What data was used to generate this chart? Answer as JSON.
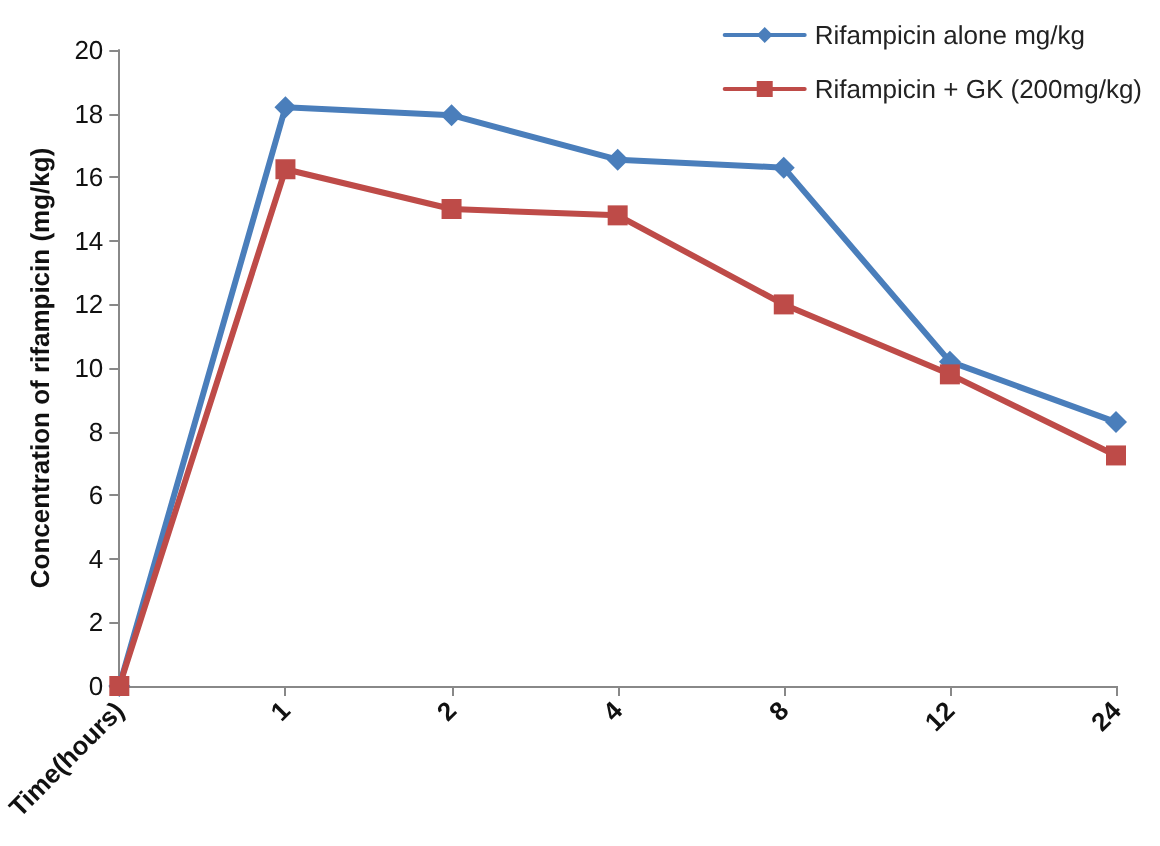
{
  "chart_data": {
    "type": "line",
    "ylabel": "Concentration of rifampicin (mg/kg)",
    "categories": [
      "Time(hours)",
      "1",
      "2",
      "4",
      "8",
      "12",
      "24"
    ],
    "series": [
      {
        "name": "Rifampicin alone mg/kg",
        "color": "#4a7ebb",
        "marker": "diamond",
        "values": [
          0,
          18.2,
          17.95,
          16.55,
          16.3,
          10.2,
          8.3
        ]
      },
      {
        "name": "Rifampicin + GK (200mg/kg)",
        "color": "#be4b48",
        "marker": "square",
        "values": [
          0,
          16.25,
          15.0,
          14.8,
          12.0,
          9.8,
          7.25
        ]
      }
    ],
    "ylim": [
      0,
      20
    ],
    "yticks": [
      0,
      2,
      4,
      6,
      8,
      10,
      12,
      14,
      16,
      18,
      20
    ],
    "grid": false,
    "legend": "top right",
    "line_style": "solid"
  }
}
